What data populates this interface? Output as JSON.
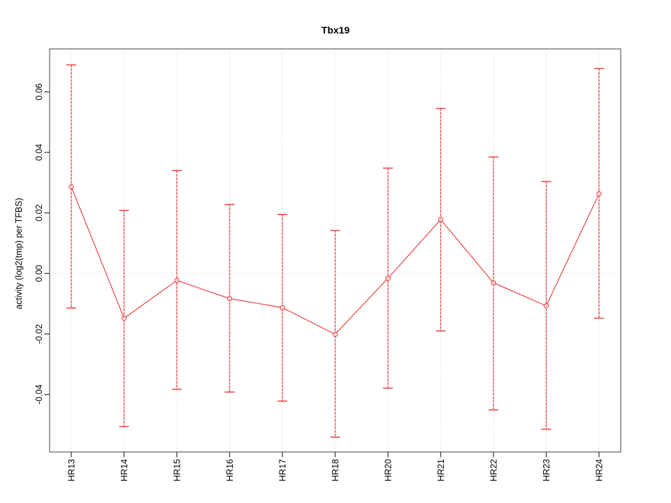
{
  "chart_data": {
    "type": "line",
    "title": "Tbx19",
    "ylabel": "activity (log2(tmp) per TFBS)",
    "xlabel": "",
    "legend": "none",
    "marker": "open-circle",
    "error_bars": true,
    "categories": [
      "HR13",
      "HR14",
      "HR15",
      "HR16",
      "HR17",
      "HR18",
      "HR20",
      "HR21",
      "HR22",
      "HR23",
      "HR24"
    ],
    "series": [
      {
        "values": [
          0.0286,
          -0.0148,
          -0.0023,
          -0.0083,
          -0.0113,
          -0.0201,
          -0.0016,
          0.0178,
          -0.0031,
          -0.0107,
          0.0263
        ],
        "upper": [
          0.0689,
          0.0208,
          0.034,
          0.0228,
          0.0195,
          0.0142,
          0.0348,
          0.0545,
          0.0385,
          0.0304,
          0.0677
        ],
        "lower": [
          -0.0114,
          -0.0506,
          -0.0383,
          -0.0392,
          -0.0422,
          -0.0541,
          -0.0379,
          -0.019,
          -0.0451,
          -0.0515,
          -0.0148
        ]
      }
    ],
    "yticks": [
      {
        "label": "0.06",
        "value": 0.06
      },
      {
        "label": "0.04",
        "value": 0.04
      },
      {
        "label": "0.02",
        "value": 0.02
      },
      {
        "label": "0.00",
        "value": 0.0
      },
      {
        "label": "-0.02",
        "value": -0.02
      },
      {
        "label": "-0.04",
        "value": -0.04
      }
    ],
    "ylim": [
      -0.059,
      0.0745
    ],
    "grid": {
      "vertical_gridlines_dotted": true,
      "horizontal_zero_line_dotted": true
    },
    "colors": {
      "series": "#e64545",
      "error_bar_base": "#f6b3b3",
      "error_bar_dash": "#df4040",
      "error_bar_cap": "#ef4b4b",
      "grid": "#cccccc",
      "box": "#7e7e7e",
      "tick": "#3f3f3f",
      "text": "#000000",
      "background": "#ffffff"
    }
  }
}
